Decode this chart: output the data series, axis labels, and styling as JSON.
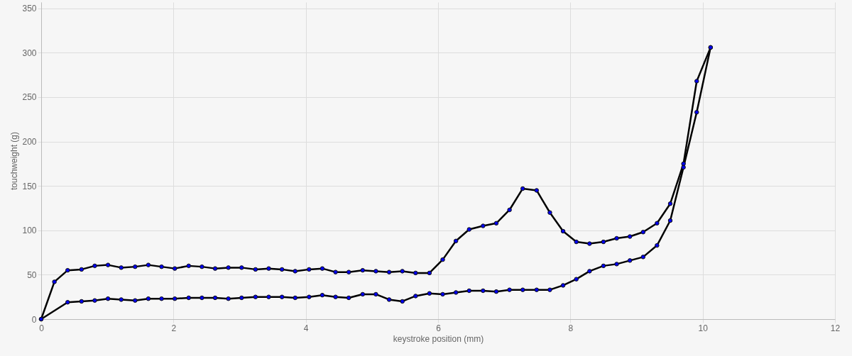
{
  "chart_data": {
    "type": "line",
    "xlabel": "keystroke position (mm)",
    "ylabel": "touchweight (g)",
    "xlim": [
      0,
      12
    ],
    "ylim": [
      0,
      357
    ],
    "xticks": [
      0,
      2,
      4,
      6,
      8,
      10,
      12
    ],
    "yticks": [
      0,
      50,
      100,
      150,
      200,
      250,
      300,
      350
    ],
    "grid": true,
    "marker": "circle",
    "line_style": "solid",
    "series": [
      {
        "color": "#000000",
        "x": [
          0,
          0.2,
          0.4,
          0.61,
          0.81,
          1.01,
          1.21,
          1.42,
          1.62,
          1.82,
          2.02,
          2.23,
          2.43,
          2.63,
          2.83,
          3.03,
          3.24,
          3.44,
          3.64,
          3.84,
          4.05,
          4.25,
          4.45,
          4.65,
          4.86,
          5.06,
          5.26,
          5.46,
          5.66,
          5.87,
          6.07,
          6.27,
          6.47,
          6.68,
          6.88,
          7.08,
          7.28,
          7.49,
          7.69,
          7.89,
          8.09,
          8.29,
          8.5,
          8.7,
          8.9,
          9.1,
          9.31,
          9.51,
          9.71,
          9.91,
          10.12
        ],
        "values": [
          0,
          42,
          55,
          56,
          60,
          61,
          58,
          59,
          61,
          59,
          57,
          60,
          59,
          57,
          58,
          58,
          56,
          57,
          56,
          54,
          56,
          57,
          53,
          53,
          55,
          54,
          53,
          54,
          52,
          52,
          67,
          88,
          101,
          105,
          108,
          123,
          147,
          145,
          120,
          99,
          87,
          85,
          87,
          91,
          93,
          98,
          108,
          130,
          175,
          268,
          306
        ]
      },
      {
        "color": "#000000",
        "x": [
          0,
          0.4,
          0.61,
          0.81,
          1.01,
          1.21,
          1.42,
          1.62,
          1.82,
          2.02,
          2.23,
          2.43,
          2.63,
          2.83,
          3.03,
          3.24,
          3.44,
          3.64,
          3.84,
          4.05,
          4.25,
          4.45,
          4.65,
          4.86,
          5.06,
          5.26,
          5.46,
          5.66,
          5.87,
          6.07,
          6.27,
          6.47,
          6.68,
          6.88,
          7.08,
          7.28,
          7.49,
          7.69,
          7.89,
          8.09,
          8.29,
          8.5,
          8.7,
          8.9,
          9.1,
          9.31,
          9.51,
          9.71,
          9.91,
          10.12
        ],
        "values": [
          0,
          19,
          20,
          21,
          23,
          22,
          21,
          23,
          23,
          23,
          24,
          24,
          24,
          23,
          24,
          25,
          25,
          25,
          24,
          25,
          27,
          25,
          24,
          28,
          28,
          22,
          20,
          26,
          29,
          28,
          30,
          32,
          32,
          31,
          33,
          33,
          33,
          33,
          38,
          45,
          54,
          60,
          62,
          66,
          70,
          83,
          111,
          171,
          233,
          306
        ]
      }
    ]
  }
}
